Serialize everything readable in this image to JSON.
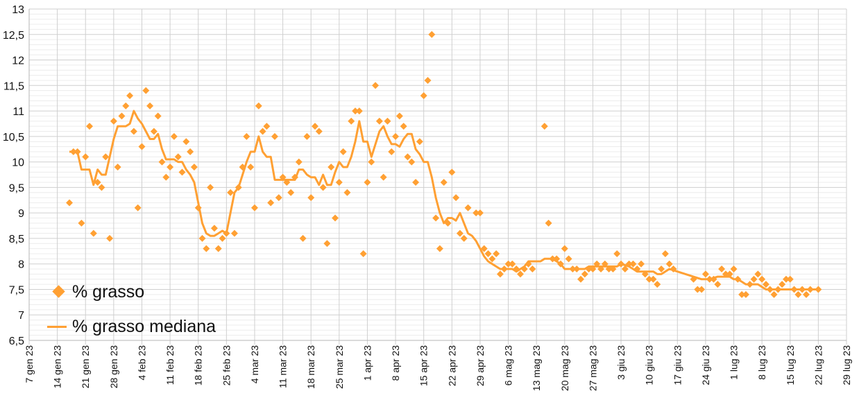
{
  "chart_data": {
    "type": "scatter+line",
    "title": "",
    "xlabel": "",
    "ylabel": "",
    "x_unit": "days since 7 gen 23",
    "ylim": [
      6.5,
      13
    ],
    "xlim": [
      0,
      203
    ],
    "grid": true,
    "legend_position": "bottom-left",
    "colors": {
      "series": "#ffa033",
      "grid_major": "#cfcfcf",
      "grid_minor": "#ececec"
    },
    "y_ticks": [
      "6,5",
      "7",
      "7,5",
      "8",
      "8,5",
      "9",
      "9,5",
      "10",
      "10,5",
      "11",
      "11,5",
      "12",
      "12,5",
      "13"
    ],
    "x_ticks": [
      "7 gen 23",
      "14 gen 23",
      "21 gen 23",
      "28 gen 23",
      "4 feb 23",
      "11 feb 23",
      "18 feb 23",
      "25 feb 23",
      "4 mar 23",
      "11 mar 23",
      "18 mar 23",
      "25 mar 23",
      "1 apr 23",
      "8 apr 23",
      "15 apr 23",
      "22 apr 23",
      "29 apr 23",
      "6 mag 23",
      "13 mag 23",
      "20 mag 23",
      "27 mag 23",
      "3 giu 23",
      "10 giu 23",
      "17 giu 23",
      "24 giu 23",
      "1 lug 23",
      "8 lug 23",
      "15 lug 23",
      "22 lug 23",
      "29 lug 23"
    ],
    "series": [
      {
        "name": "% grasso",
        "kind": "scatter",
        "x": [
          10,
          11,
          12,
          13,
          14,
          15,
          16,
          17,
          18,
          19,
          20,
          21,
          22,
          23,
          24,
          25,
          26,
          27,
          28,
          29,
          30,
          31,
          32,
          33,
          34,
          35,
          36,
          37,
          38,
          39,
          40,
          41,
          42,
          43,
          44,
          45,
          46,
          47,
          48,
          49,
          50,
          51,
          52,
          53,
          54,
          55,
          56,
          57,
          58,
          59,
          60,
          61,
          62,
          63,
          64,
          65,
          66,
          67,
          68,
          69,
          70,
          71,
          72,
          73,
          74,
          75,
          76,
          77,
          78,
          79,
          80,
          81,
          82,
          83,
          84,
          85,
          86,
          87,
          88,
          89,
          90,
          91,
          92,
          93,
          94,
          95,
          96,
          97,
          98,
          99,
          100,
          101,
          102,
          103,
          104,
          105,
          106,
          107,
          108,
          109,
          111,
          112,
          113,
          114,
          115,
          116,
          117,
          118,
          119,
          120,
          121,
          122,
          123,
          124,
          125,
          128,
          129,
          130,
          131,
          132,
          133,
          134,
          135,
          136,
          137,
          138,
          139,
          140,
          141,
          142,
          143,
          144,
          145,
          146,
          147,
          148,
          149,
          150,
          151,
          152,
          153,
          154,
          155,
          156,
          157,
          158,
          159,
          160,
          165,
          166,
          167,
          168,
          169,
          170,
          171,
          172,
          173,
          174,
          175,
          176,
          177,
          178,
          179,
          180,
          181,
          182,
          183,
          184,
          185,
          186,
          187,
          188,
          189,
          190,
          191,
          192,
          193,
          194,
          196
        ],
        "y": [
          9.2,
          10.2,
          10.2,
          8.8,
          10.1,
          10.7,
          8.6,
          9.6,
          9.5,
          10.1,
          8.5,
          10.8,
          9.9,
          10.9,
          11.1,
          11.3,
          10.6,
          9.1,
          10.3,
          11.4,
          11.1,
          10.6,
          10.9,
          10.0,
          9.7,
          9.9,
          10.5,
          10.1,
          9.8,
          10.4,
          10.2,
          9.9,
          9.1,
          8.5,
          8.3,
          9.5,
          8.7,
          8.3,
          8.5,
          8.6,
          9.4,
          8.6,
          9.5,
          9.9,
          10.5,
          9.9,
          9.1,
          11.1,
          10.6,
          10.7,
          9.2,
          10.5,
          9.3,
          9.7,
          9.6,
          9.4,
          9.7,
          10.0,
          8.5,
          10.5,
          9.3,
          10.7,
          10.6,
          9.5,
          8.4,
          9.9,
          8.9,
          9.6,
          10.2,
          9.4,
          10.8,
          11.0,
          11.0,
          8.2,
          9.6,
          10.0,
          11.5,
          10.8,
          9.7,
          10.8,
          10.2,
          10.5,
          10.9,
          10.7,
          10.1,
          10.0,
          9.6,
          10.4,
          11.3,
          11.6,
          12.5,
          8.9,
          8.3,
          9.6,
          8.8,
          9.8,
          9.3,
          8.6,
          8.5,
          9.1,
          9.0,
          9.0,
          8.3,
          8.2,
          8.1,
          8.2,
          7.8,
          7.9,
          8.0,
          8.0,
          7.9,
          7.8,
          7.9,
          8.0,
          7.9,
          10.7,
          8.8,
          8.1,
          8.1,
          8.0,
          8.3,
          8.1,
          7.9,
          7.9,
          7.7,
          7.8,
          7.9,
          7.9,
          8.0,
          7.9,
          8.0,
          7.9,
          7.9,
          8.2,
          8.0,
          7.9,
          8.0,
          8.0,
          7.9,
          8.0,
          7.8,
          7.7,
          7.7,
          7.6,
          7.9,
          8.2,
          8.0,
          7.9,
          7.7,
          7.5,
          7.5,
          7.8,
          7.7,
          7.7,
          7.6,
          7.9,
          7.8,
          7.8,
          7.9,
          7.7,
          7.4,
          7.4,
          7.6,
          7.7,
          7.8,
          7.7,
          7.6,
          7.5,
          7.4,
          7.5,
          7.6,
          7.7,
          7.7,
          7.5,
          7.4,
          7.5,
          7.4,
          7.5,
          7.5
        ]
      },
      {
        "name": "% grasso mediana",
        "kind": "line",
        "x": [
          10,
          11,
          12,
          13,
          14,
          15,
          16,
          17,
          18,
          19,
          20,
          21,
          22,
          23,
          24,
          25,
          26,
          27,
          28,
          29,
          30,
          31,
          32,
          33,
          34,
          35,
          36,
          37,
          38,
          39,
          40,
          41,
          42,
          43,
          44,
          45,
          46,
          47,
          48,
          49,
          50,
          51,
          52,
          53,
          54,
          55,
          56,
          57,
          58,
          59,
          60,
          61,
          62,
          63,
          64,
          65,
          66,
          67,
          68,
          69,
          70,
          71,
          72,
          73,
          74,
          75,
          76,
          77,
          78,
          79,
          80,
          81,
          82,
          83,
          84,
          85,
          86,
          87,
          88,
          89,
          90,
          91,
          92,
          93,
          94,
          95,
          96,
          97,
          98,
          99,
          100,
          101,
          102,
          103,
          104,
          105,
          106,
          107,
          108,
          109,
          110,
          111,
          112,
          113,
          114,
          115,
          116,
          117,
          118,
          119,
          120,
          121,
          122,
          123,
          124,
          127,
          128,
          130,
          131,
          132,
          133,
          135,
          137,
          138,
          139,
          141,
          144,
          146,
          147,
          149,
          150,
          151,
          154,
          155,
          156,
          157,
          158,
          159,
          161,
          167,
          169,
          171,
          172,
          174,
          175,
          176,
          177,
          178,
          181,
          182,
          183,
          186,
          190,
          196
        ],
        "y": [
          10.2,
          10.2,
          10.2,
          9.85,
          9.85,
          9.85,
          9.55,
          9.85,
          9.75,
          9.75,
          10.1,
          10.45,
          10.7,
          10.7,
          10.7,
          10.75,
          11.0,
          10.85,
          10.75,
          10.6,
          10.45,
          10.45,
          10.55,
          10.25,
          10.05,
          10.05,
          10.05,
          10.0,
          10.0,
          9.85,
          9.75,
          9.6,
          9.2,
          8.8,
          8.6,
          8.55,
          8.55,
          8.6,
          8.65,
          8.6,
          9.0,
          9.4,
          9.5,
          9.75,
          10.0,
          10.2,
          10.2,
          10.5,
          10.2,
          10.1,
          10.1,
          9.65,
          9.65,
          9.65,
          9.65,
          9.65,
          9.65,
          9.85,
          9.85,
          9.75,
          9.7,
          9.7,
          9.55,
          9.75,
          9.55,
          9.55,
          9.8,
          10.0,
          9.9,
          9.9,
          10.1,
          10.4,
          10.8,
          10.4,
          10.4,
          10.1,
          10.35,
          10.6,
          10.7,
          10.5,
          10.35,
          10.35,
          10.3,
          10.45,
          10.55,
          10.55,
          10.25,
          10.15,
          10.0,
          10.0,
          9.7,
          9.3,
          9.0,
          8.8,
          8.9,
          8.9,
          8.85,
          9.0,
          8.8,
          8.6,
          8.55,
          8.45,
          8.3,
          8.15,
          8.05,
          8.0,
          7.95,
          7.9,
          7.9,
          7.9,
          7.9,
          7.85,
          7.9,
          7.95,
          8.05,
          8.05,
          8.1,
          8.1,
          8.05,
          8.0,
          7.9,
          7.9,
          7.9,
          7.9,
          7.95,
          7.95,
          7.95,
          7.95,
          8.0,
          7.95,
          7.9,
          7.85,
          7.85,
          7.85,
          7.8,
          7.8,
          7.85,
          7.9,
          7.85,
          7.7,
          7.7,
          7.75,
          7.75,
          7.75,
          7.7,
          7.7,
          7.65,
          7.6,
          7.6,
          7.55,
          7.5,
          7.5,
          7.5,
          7.5
        ]
      }
    ]
  }
}
